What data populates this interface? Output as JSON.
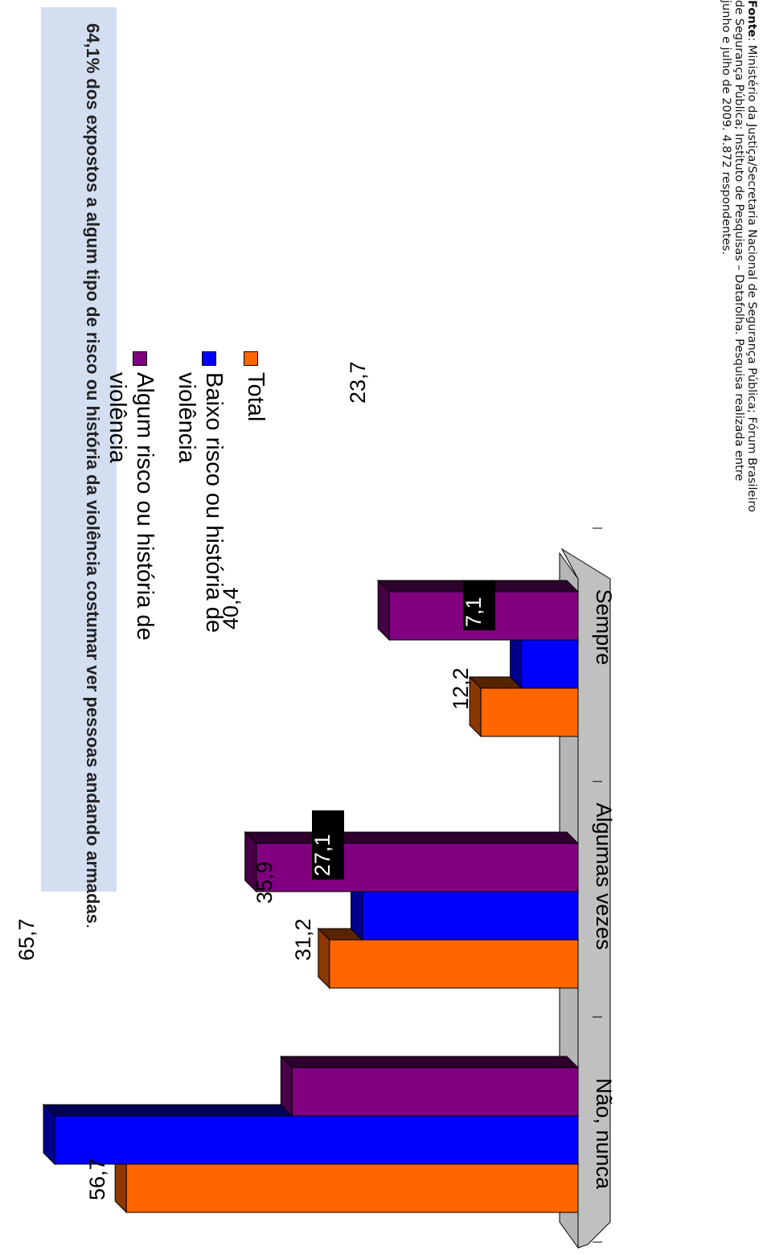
{
  "title": {
    "bold_prefix": "64,1% dos expostos a algum tipo de risco ou história da violência costumar ver pessoas andando armadas",
    "suffix": "."
  },
  "legend": [
    {
      "label": "Total",
      "color": "#ff6600"
    },
    {
      "label": "Baixo risco ou história de violência",
      "color": "#0000ff"
    },
    {
      "label": "Algum risco ou história de violência",
      "color": "#800080"
    }
  ],
  "source": {
    "label": "Fonte",
    "text": ": Ministério da Justiça/Secretaria Nacional de Segurança Pública; Fórum Brasileiro de Segurança Pública; Instituto de Pesquisas – Datafolha. Pesquisa realizada entre junho e julho de 2009. 4.872 respondentes."
  },
  "chart_data": {
    "type": "bar",
    "categories": [
      "Não, nunca",
      "Algumas vezes",
      "Sempre"
    ],
    "series": [
      {
        "name": "Total",
        "values": [
          56.7,
          31.2,
          12.2
        ],
        "labels": [
          "56,7",
          "31,2",
          "12,2"
        ],
        "color": "#ff6600"
      },
      {
        "name": "Baixo risco ou história de violência",
        "values": [
          65.7,
          27.1,
          7.1
        ],
        "labels": [
          "65,7",
          "27,1",
          "7,1"
        ],
        "color": "#0000ff"
      },
      {
        "name": "Algum risco ou história de violência",
        "values": [
          35.9,
          40.4,
          23.7
        ],
        "labels": [
          "35,9",
          "40,4",
          "23,7"
        ],
        "color": "#800080"
      }
    ],
    "ylim": [
      0,
      70
    ],
    "orientation": "rotated-90-clockwise",
    "three_d": true,
    "legend_position": "right"
  }
}
